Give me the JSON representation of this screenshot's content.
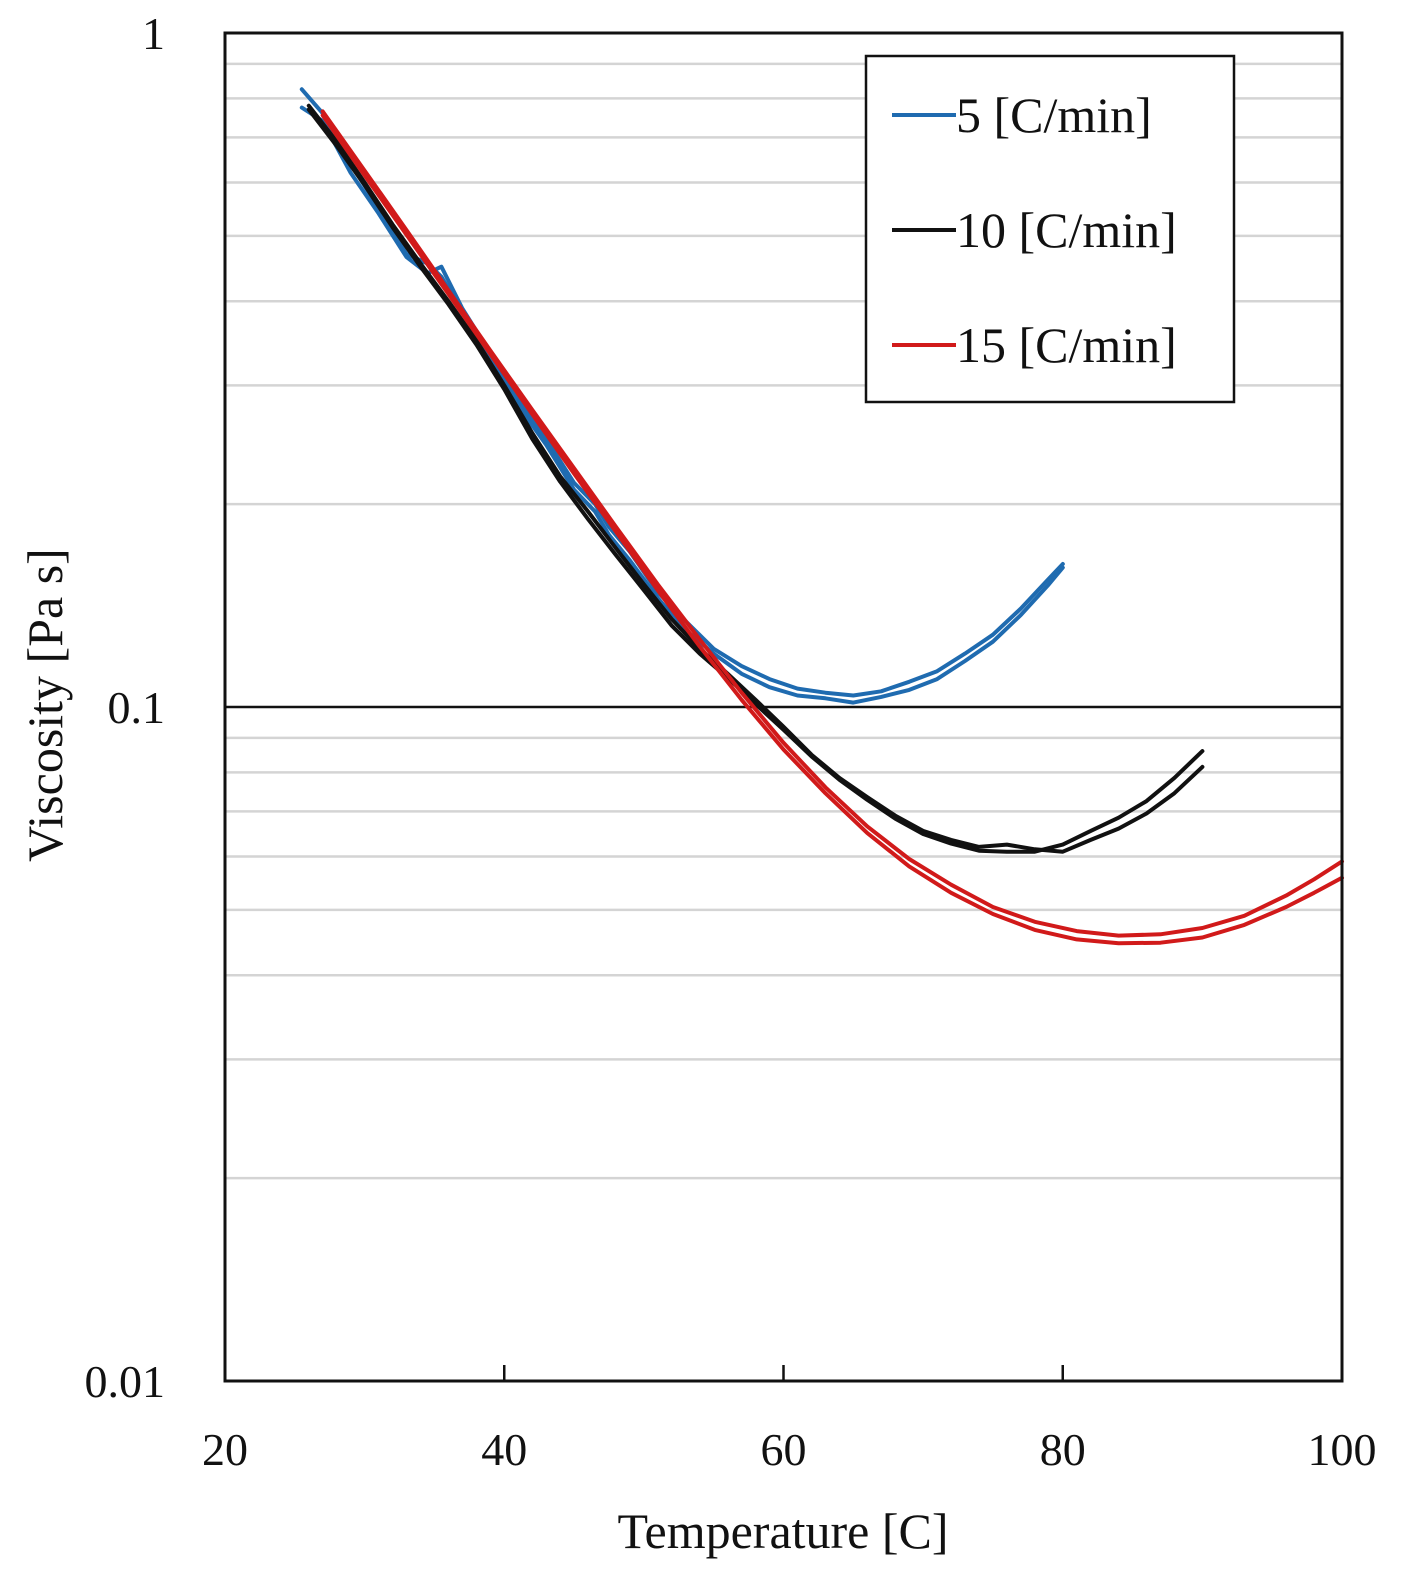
{
  "chart_data": {
    "type": "line",
    "title": "",
    "xlabel": "Temperature [C]",
    "ylabel": "Viscosity [Pa s]",
    "xlim": [
      20,
      100
    ],
    "ylim": [
      0.01,
      1
    ],
    "yscale": "log",
    "x_ticks": [
      20,
      40,
      60,
      80,
      100
    ],
    "x_tick_labels": [
      "20",
      "40",
      "60",
      "80",
      "100"
    ],
    "y_ticks": [
      0.01,
      0.1,
      1
    ],
    "y_tick_labels": [
      "0.01",
      "0.1",
      "1"
    ],
    "grid": true,
    "legend_position": "top-right",
    "series": [
      {
        "name": "5 [C/min]",
        "color": "#1f6bb0",
        "traces": [
          {
            "x": [
              25.5,
              27,
              29,
              31,
              33,
              34.5,
              35.5,
              37,
              39,
              41,
              43,
              45,
              46.5,
              47.5,
              49,
              51,
              53,
              55,
              57,
              59,
              61,
              63,
              65,
              67,
              69,
              71,
              73,
              75,
              77,
              79,
              80
            ],
            "y": [
              0.825,
              0.76,
              0.64,
              0.55,
              0.47,
              0.455,
              0.435,
              0.385,
              0.33,
              0.28,
              0.245,
              0.21,
              0.195,
              0.18,
              0.165,
              0.145,
              0.13,
              0.12,
              0.112,
              0.107,
              0.104,
              0.103,
              0.1015,
              0.1035,
              0.106,
              0.11,
              0.117,
              0.125,
              0.137,
              0.152,
              0.161
            ]
          },
          {
            "x": [
              25.5,
              27,
              29,
              31,
              33,
              34.5,
              35.5,
              37,
              39,
              41,
              43,
              45,
              46.5,
              47.5,
              49,
              51,
              53,
              55,
              57,
              59,
              61,
              63,
              65,
              67,
              69,
              71,
              73,
              75,
              77,
              79,
              80
            ],
            "y": [
              0.775,
              0.74,
              0.62,
              0.54,
              0.465,
              0.44,
              0.45,
              0.39,
              0.335,
              0.285,
              0.25,
              0.215,
              0.2,
              0.185,
              0.17,
              0.148,
              0.134,
              0.122,
              0.115,
              0.11,
              0.1065,
              0.105,
              0.104,
              0.1055,
              0.109,
              0.113,
              0.12,
              0.128,
              0.14,
              0.155,
              0.163
            ]
          }
        ]
      },
      {
        "name": "10 [C/min]",
        "color": "#111111",
        "traces": [
          {
            "x": [
              26,
              28,
              30,
              32,
              34,
              36,
              38,
              40,
              42,
              44,
              46,
              48,
              50,
              52,
              54,
              56,
              58,
              60,
              62,
              64,
              66,
              68,
              70,
              72,
              74,
              76,
              78,
              80,
              82,
              84,
              86,
              88,
              90
            ],
            "y": [
              0.78,
              0.69,
              0.6,
              0.52,
              0.455,
              0.4,
              0.35,
              0.3,
              0.255,
              0.22,
              0.195,
              0.172,
              0.152,
              0.135,
              0.122,
              0.112,
              0.1025,
              0.0935,
              0.085,
              0.0785,
              0.0735,
              0.069,
              0.0655,
              0.0635,
              0.062,
              0.0625,
              0.0615,
              0.061,
              0.0635,
              0.066,
              0.0695,
              0.0745,
              0.0815
            ]
          },
          {
            "x": [
              26,
              28,
              30,
              32,
              34,
              36,
              38,
              40,
              42,
              44,
              46,
              48,
              50,
              52,
              54,
              56,
              58,
              60,
              62,
              64,
              66,
              68,
              70,
              72,
              74,
              76,
              78,
              80,
              82,
              84,
              86,
              88,
              90
            ],
            "y": [
              0.77,
              0.68,
              0.595,
              0.515,
              0.45,
              0.396,
              0.345,
              0.296,
              0.25,
              0.216,
              0.19,
              0.168,
              0.149,
              0.132,
              0.12,
              0.1105,
              0.101,
              0.0925,
              0.0845,
              0.078,
              0.0728,
              0.0683,
              0.0648,
              0.0627,
              0.0612,
              0.061,
              0.061,
              0.0625,
              0.0655,
              0.0685,
              0.0725,
              0.0785,
              0.086
            ]
          }
        ]
      },
      {
        "name": "15 [C/min]",
        "color": "#d11a1a",
        "traces": [
          {
            "x": [
              27,
              30,
              33,
              36,
              39,
              42,
              45,
              48,
              51,
              54,
              57,
              60,
              63,
              66,
              69,
              72,
              75,
              78,
              81,
              84,
              87,
              90,
              93,
              96,
              98,
              100
            ],
            "y": [
              0.765,
              0.625,
              0.51,
              0.415,
              0.338,
              0.276,
              0.226,
              0.185,
              0.152,
              0.126,
              0.105,
              0.0885,
              0.076,
              0.0665,
              0.0595,
              0.0545,
              0.0505,
              0.048,
              0.0465,
              0.0458,
              0.046,
              0.047,
              0.049,
              0.0525,
              0.0555,
              0.059
            ]
          },
          {
            "x": [
              27,
              30,
              33,
              36,
              39,
              42,
              45,
              48,
              51,
              54,
              57,
              60,
              63,
              66,
              69,
              72,
              75,
              78,
              81,
              84,
              87,
              90,
              93,
              96,
              98,
              100
            ],
            "y": [
              0.755,
              0.615,
              0.502,
              0.41,
              0.334,
              0.272,
              0.222,
              0.182,
              0.149,
              0.123,
              0.1025,
              0.0865,
              0.0745,
              0.065,
              0.058,
              0.053,
              0.0493,
              0.0467,
              0.0452,
              0.0446,
              0.0447,
              0.0455,
              0.0475,
              0.0505,
              0.053,
              0.0558
            ]
          }
        ]
      }
    ]
  }
}
